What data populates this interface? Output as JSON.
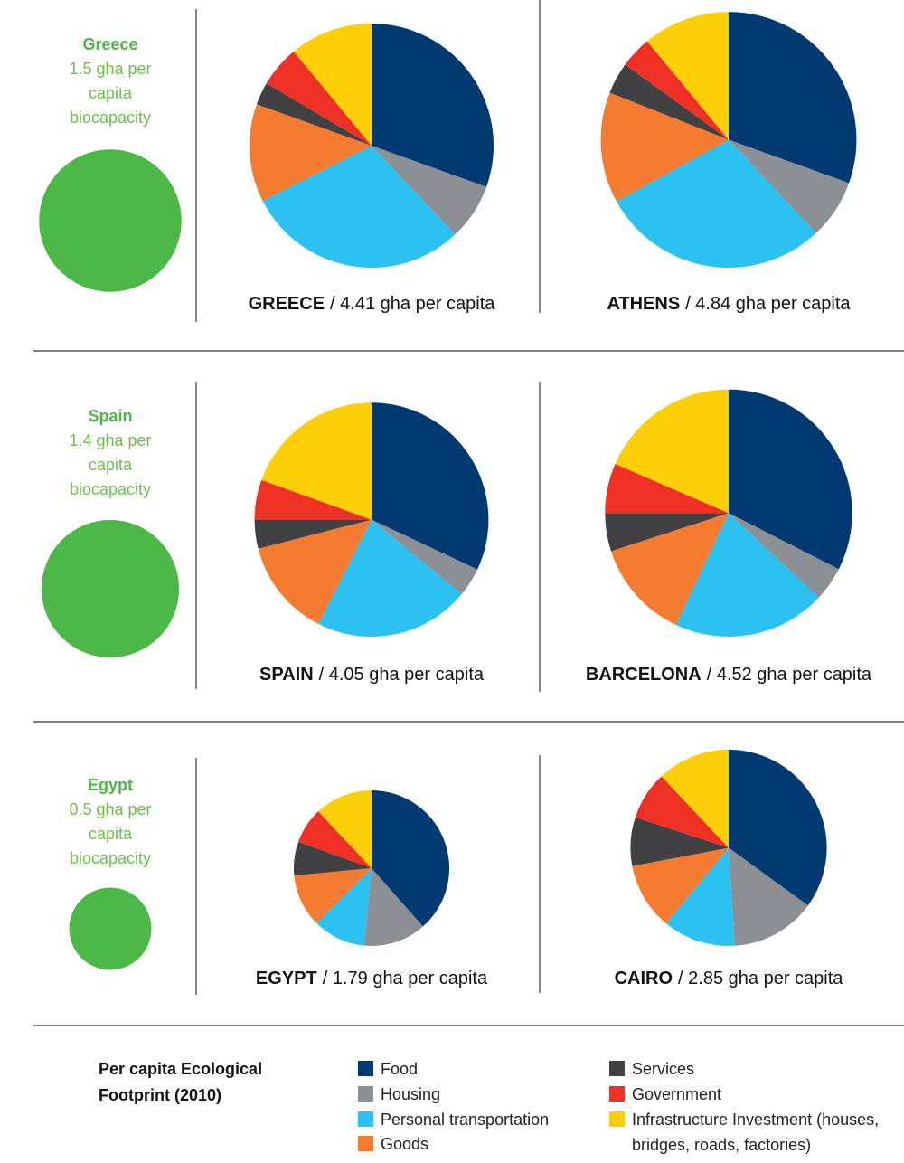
{
  "legend": {
    "title": "Per capita Ecological Footprint (2010)",
    "items": [
      {
        "name": "Food",
        "color": "#003a70"
      },
      {
        "name": "Housing",
        "color": "#8c8f93"
      },
      {
        "name": "Personal transportation",
        "color": "#2bc1f0"
      },
      {
        "name": "Goods",
        "color": "#f47b30"
      },
      {
        "name": "Services",
        "color": "#414042"
      },
      {
        "name": "Government",
        "color": "#ee3124"
      },
      {
        "name": "Infrastructure Investment (houses, bridges, roads, factories)",
        "color": "#fdcf06"
      }
    ]
  },
  "biocapacity": [
    {
      "country": "Greece",
      "value": 1.5,
      "label": "1.5 gha per capita biocapacity",
      "color": "#4cb848"
    },
    {
      "country": "Spain",
      "value": 1.4,
      "label": "1.4 gha per capita biocapacity",
      "color": "#4cb848"
    },
    {
      "country": "Egypt",
      "value": 0.5,
      "label": "0.5 gha per capita biocapacity",
      "color": "#4cb848"
    }
  ],
  "chart_data": [
    {
      "type": "pie",
      "title": "GREECE",
      "total": 4.41,
      "total_label": "/ 4.41 gha per capita",
      "values": [
        30.5,
        7.5,
        29.5,
        13,
        3,
        5.5,
        11
      ]
    },
    {
      "type": "pie",
      "title": "ATHENS",
      "total": 4.84,
      "total_label": "/ 4.84 gha per capita",
      "values": [
        30.5,
        7.5,
        29,
        14,
        4,
        4,
        11
      ]
    },
    {
      "type": "pie",
      "title": "SPAIN",
      "total": 4.05,
      "total_label": "/ 4.05 gha per capita",
      "values": [
        32,
        4,
        21.5,
        13.5,
        4,
        5.5,
        19.5
      ]
    },
    {
      "type": "pie",
      "title": "BARCELONA",
      "total": 4.52,
      "total_label": "/ 4.52 gha per capita",
      "values": [
        32.5,
        4.5,
        20,
        13,
        5,
        6.5,
        18.5
      ]
    },
    {
      "type": "pie",
      "title": "EGYPT",
      "total": 1.79,
      "total_label": "/ 1.79 gha per capita",
      "values": [
        38.5,
        13,
        11,
        11,
        7,
        7.5,
        12
      ]
    },
    {
      "type": "pie",
      "title": "CAIRO",
      "total": 2.85,
      "total_label": "/ 2.85 gha per capita",
      "values": [
        35,
        14,
        12,
        11,
        8,
        8,
        12
      ]
    }
  ]
}
